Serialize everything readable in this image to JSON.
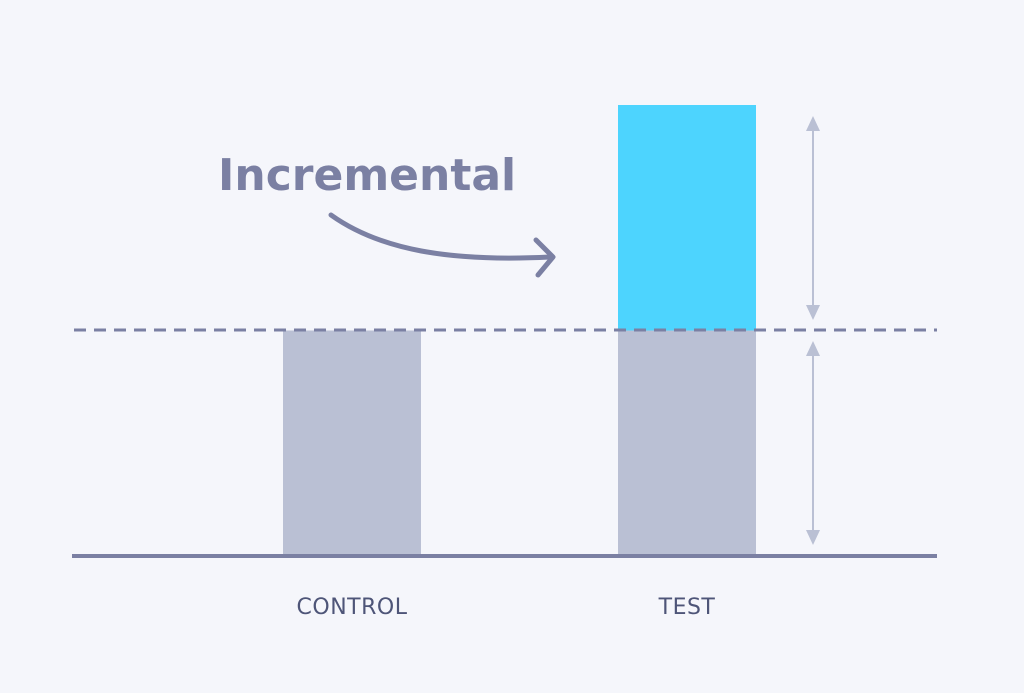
{
  "annotation": {
    "label": "Incremental"
  },
  "chart_data": {
    "type": "bar",
    "categories": [
      "CONTROL",
      "TEST"
    ],
    "series": [
      {
        "values": [
          1,
          1
        ]
      },
      {
        "values": [
          0,
          1
        ]
      }
    ]
  },
  "colors": {
    "background": "#f5f6fb",
    "baseline_bar": "#bac0d4",
    "incremental_bar": "#4dd4fe",
    "axis_line": "#7b80a3",
    "annotation_text": "#7b80a3",
    "dimension_arrow": "#bac0d4",
    "category_label": "#4e5578"
  }
}
